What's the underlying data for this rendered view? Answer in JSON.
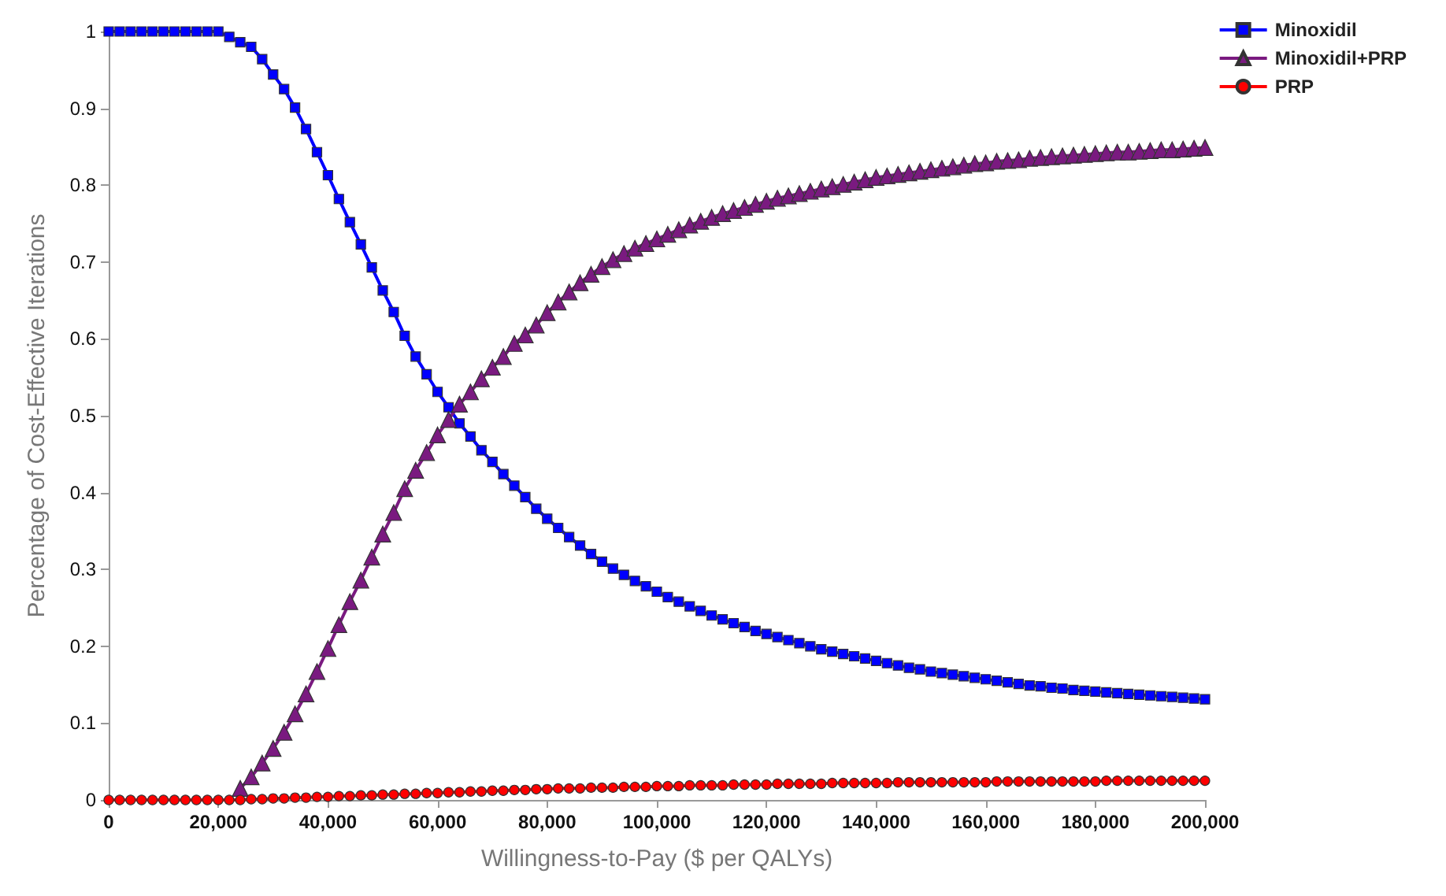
{
  "chart_data": {
    "type": "line",
    "xlabel": "Willingness-to-Pay ($ per QALYs)",
    "ylabel": "Percentage of Cost-Effective Iterations",
    "x": [
      0,
      2000,
      4000,
      6000,
      8000,
      10000,
      12000,
      14000,
      16000,
      18000,
      20000,
      22000,
      24000,
      26000,
      28000,
      30000,
      32000,
      34000,
      36000,
      38000,
      40000,
      42000,
      44000,
      46000,
      48000,
      50000,
      52000,
      54000,
      56000,
      58000,
      60000,
      62000,
      64000,
      66000,
      68000,
      70000,
      72000,
      74000,
      76000,
      78000,
      80000,
      82000,
      84000,
      86000,
      88000,
      90000,
      92000,
      94000,
      96000,
      98000,
      100000,
      102000,
      104000,
      106000,
      108000,
      110000,
      112000,
      114000,
      116000,
      118000,
      120000,
      122000,
      124000,
      126000,
      128000,
      130000,
      132000,
      134000,
      136000,
      138000,
      140000,
      142000,
      144000,
      146000,
      148000,
      150000,
      152000,
      154000,
      156000,
      158000,
      160000,
      162000,
      164000,
      166000,
      168000,
      170000,
      172000,
      174000,
      176000,
      178000,
      180000,
      182000,
      184000,
      186000,
      188000,
      190000,
      192000,
      194000,
      196000,
      198000,
      200000
    ],
    "series": [
      {
        "name": "Minoxidil",
        "color": "#0000ff",
        "marker": "square",
        "values": [
          1,
          1,
          1,
          1,
          1,
          1,
          1,
          1,
          1,
          1,
          1,
          0.993,
          0.986,
          0.98,
          0.964,
          0.944,
          0.925,
          0.901,
          0.873,
          0.843,
          0.813,
          0.782,
          0.752,
          0.723,
          0.693,
          0.663,
          0.635,
          0.604,
          0.577,
          0.554,
          0.531,
          0.511,
          0.49,
          0.473,
          0.455,
          0.44,
          0.424,
          0.409,
          0.394,
          0.379,
          0.366,
          0.354,
          0.342,
          0.331,
          0.32,
          0.31,
          0.301,
          0.293,
          0.285,
          0.278,
          0.271,
          0.264,
          0.258,
          0.252,
          0.246,
          0.24,
          0.235,
          0.23,
          0.225,
          0.22,
          0.216,
          0.212,
          0.208,
          0.204,
          0.2,
          0.196,
          0.193,
          0.19,
          0.187,
          0.184,
          0.181,
          0.178,
          0.175,
          0.172,
          0.17,
          0.167,
          0.165,
          0.163,
          0.161,
          0.159,
          0.157,
          0.155,
          0.153,
          0.151,
          0.149,
          0.148,
          0.146,
          0.145,
          0.143,
          0.142,
          0.141,
          0.14,
          0.139,
          0.138,
          0.137,
          0.136,
          0.135,
          0.134,
          0.133,
          0.132,
          0.131
        ]
      },
      {
        "name": "Minoxidil+PRP",
        "color": "#7a1a80",
        "marker": "triangle",
        "values": [
          null,
          null,
          null,
          null,
          null,
          null,
          null,
          null,
          null,
          null,
          null,
          null,
          0.015,
          0.03,
          0.048,
          0.067,
          0.088,
          0.112,
          0.138,
          0.167,
          0.197,
          0.228,
          0.258,
          0.286,
          0.316,
          0.346,
          0.374,
          0.405,
          0.429,
          0.452,
          0.475,
          0.495,
          0.515,
          0.531,
          0.548,
          0.563,
          0.577,
          0.594,
          0.605,
          0.618,
          0.634,
          0.648,
          0.661,
          0.673,
          0.684,
          0.694,
          0.703,
          0.711,
          0.718,
          0.724,
          0.73,
          0.736,
          0.742,
          0.748,
          0.753,
          0.758,
          0.763,
          0.767,
          0.771,
          0.775,
          0.779,
          0.783,
          0.786,
          0.789,
          0.792,
          0.795,
          0.798,
          0.801,
          0.804,
          0.807,
          0.81,
          0.812,
          0.814,
          0.816,
          0.818,
          0.82,
          0.822,
          0.824,
          0.826,
          0.828,
          0.829,
          0.831,
          0.832,
          0.833,
          0.835,
          0.836,
          0.837,
          0.838,
          0.839,
          0.84,
          0.841,
          0.842,
          0.843,
          0.843,
          0.844,
          0.845,
          0.846,
          0.846,
          0.847,
          0.848,
          0.849
        ]
      },
      {
        "name": "PRP",
        "color": "#ff0000",
        "marker": "circle",
        "values": [
          0,
          0,
          0,
          0,
          0,
          0,
          0,
          0,
          0,
          0,
          0,
          0,
          0,
          0.001,
          0.001,
          0.002,
          0.002,
          0.003,
          0.003,
          0.004,
          0.004,
          0.005,
          0.005,
          0.006,
          0.006,
          0.007,
          0.007,
          0.008,
          0.008,
          0.009,
          0.009,
          0.01,
          0.01,
          0.011,
          0.011,
          0.012,
          0.012,
          0.013,
          0.013,
          0.014,
          0.014,
          0.015,
          0.015,
          0.015,
          0.016,
          0.016,
          0.016,
          0.017,
          0.017,
          0.017,
          0.018,
          0.018,
          0.018,
          0.019,
          0.019,
          0.019,
          0.019,
          0.02,
          0.02,
          0.02,
          0.02,
          0.021,
          0.021,
          0.021,
          0.021,
          0.021,
          0.022,
          0.022,
          0.022,
          0.022,
          0.022,
          0.022,
          0.023,
          0.023,
          0.023,
          0.023,
          0.023,
          0.023,
          0.023,
          0.023,
          0.023,
          0.024,
          0.024,
          0.024,
          0.024,
          0.024,
          0.024,
          0.024,
          0.024,
          0.024,
          0.024,
          0.025,
          0.025,
          0.025,
          0.025,
          0.025,
          0.025,
          0.025,
          0.025,
          0.025,
          0.025
        ]
      }
    ],
    "xlim": [
      0,
      200000
    ],
    "xticks": [
      0,
      {
        "value": 20000,
        "label": "20,000"
      },
      {
        "value": 40000,
        "label": "40,000"
      },
      {
        "value": 60000,
        "label": "60,000"
      },
      {
        "value": 80000,
        "label": "80,000"
      },
      {
        "value": 100000,
        "label": "100,000"
      },
      {
        "value": 120000,
        "label": "120,000"
      },
      {
        "value": 140000,
        "label": "140,000"
      },
      {
        "value": 160000,
        "label": "160,000"
      },
      {
        "value": 180000,
        "label": "180,000"
      },
      {
        "value": 200000,
        "label": "200,000"
      }
    ],
    "ylim": [
      0,
      1
    ],
    "yticks": [
      0,
      0.1,
      0.2,
      0.3,
      0.4,
      0.5,
      0.6,
      0.7,
      0.8,
      0.9,
      1
    ],
    "grid": false,
    "legend": "top right"
  }
}
